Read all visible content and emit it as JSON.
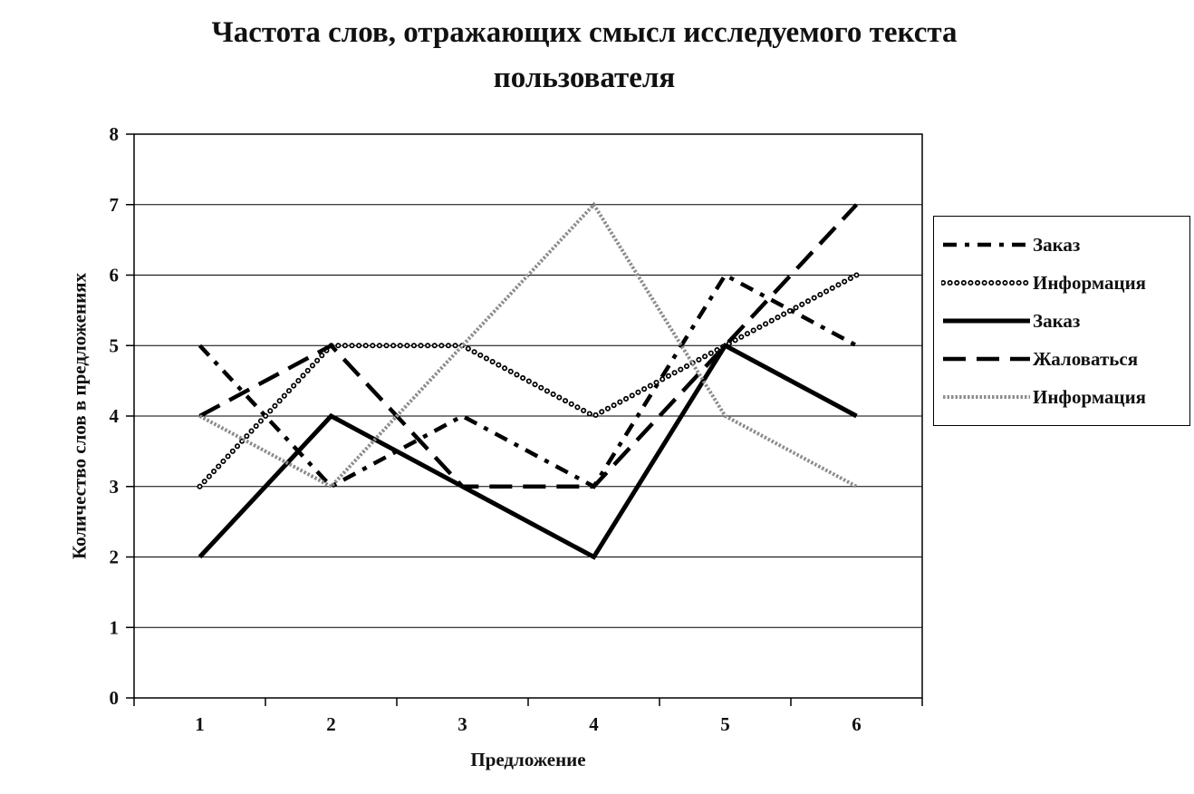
{
  "title": {
    "line1": "Частота слов, отражающих смысл исследуемого текста",
    "line2": "пользователя"
  },
  "chart_data": {
    "type": "line",
    "title": "Частота слов, отражающих смысл исследуемого текста пользователя",
    "title_lines": [
      "Частота слов, отражающих смысл исследуемого текста",
      "пользователя"
    ],
    "xlabel": "Предложение",
    "ylabel": "Количество слов в предложениях",
    "x": [
      1,
      2,
      3,
      4,
      5,
      6
    ],
    "ylim": [
      0,
      8
    ],
    "ytick_step": 1,
    "grid": "horizontal",
    "legend_position": "right",
    "background_color": "#ffffff",
    "axis_color": "#000000",
    "series": [
      {
        "name": "Заказ",
        "values": [
          5,
          3,
          4,
          3,
          6,
          5
        ],
        "color": "#000000",
        "style": "dash-dot"
      },
      {
        "name": "Информация",
        "values": [
          3,
          5,
          5,
          4,
          5,
          6
        ],
        "color": "#000000",
        "style": "circles"
      },
      {
        "name": "Заказ",
        "values": [
          2,
          4,
          3,
          2,
          5,
          4
        ],
        "color": "#000000",
        "style": "solid"
      },
      {
        "name": "Жаловаться",
        "values": [
          4,
          5,
          3,
          3,
          5,
          7
        ],
        "color": "#000000",
        "style": "long-dash"
      },
      {
        "name": "Информация",
        "values": [
          4,
          3,
          5,
          7,
          4,
          3
        ],
        "color": "#8c8c8c",
        "style": "dense-dash"
      }
    ]
  }
}
